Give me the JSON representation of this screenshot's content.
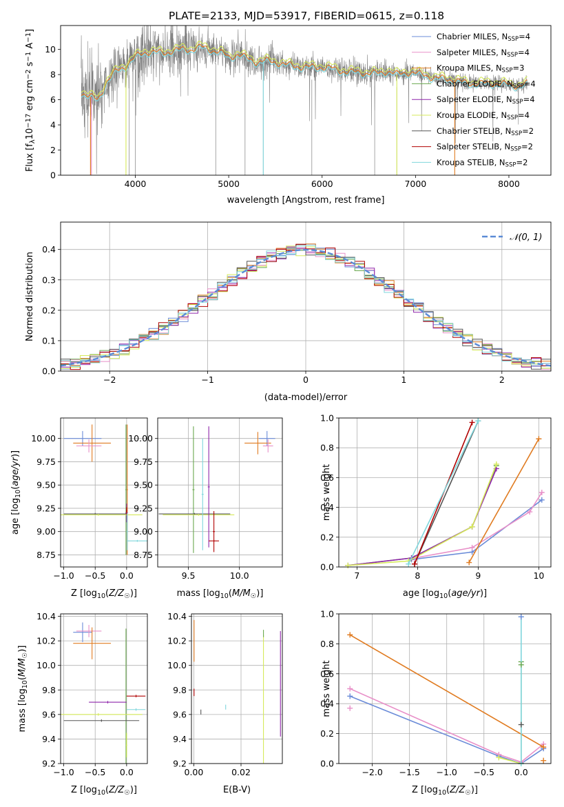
{
  "figure_title": "PLATE=2133, MJD=53917, FIBERID=0615, z=0.118",
  "colors": {
    "chabrier_miles": "#6a8bd8",
    "salpeter_miles": "#e88fc8",
    "kroupa_miles": "#e07b20",
    "chabrier_elodie": "#6aa84f",
    "salpeter_elodie": "#8e24aa",
    "kroupa_elodie": "#d6ea5a",
    "chabrier_stelib": "#555555",
    "salpeter_stelib": "#b00000",
    "kroupa_stelib": "#7ed6dc",
    "data": "#808080",
    "gaussian": "#5b8bd6"
  },
  "chart_data": [
    {
      "id": "spectrum",
      "type": "line",
      "xlabel": "wavelength [Angstrom, rest frame]",
      "ylabel": "Flux [f_λ10^-17 erg cm^-2 s^-1 A^-1]",
      "xlim": [
        3200,
        8450
      ],
      "ylim": [
        0,
        11.9
      ],
      "xticks": [
        4000,
        5000,
        6000,
        7000,
        8000
      ],
      "yticks": [
        0,
        2,
        4,
        6,
        8,
        10
      ],
      "grid": false,
      "legend_position": "right",
      "legend": [
        {
          "label": "Chabrier MILES, N",
          "sub": "SSP",
          "suffix": "=4",
          "color_key": "chabrier_miles"
        },
        {
          "label": "Salpeter MILES, N",
          "sub": "SSP",
          "suffix": "=4",
          "color_key": "salpeter_miles"
        },
        {
          "label": "Kroupa MILES, N",
          "sub": "SSP",
          "suffix": "=3",
          "color_key": "kroupa_miles"
        },
        {
          "label": "Chabrier ELODIE, N",
          "sub": "SSP",
          "suffix": "=4",
          "color_key": "chabrier_elodie"
        },
        {
          "label": "Salpeter ELODIE, N",
          "sub": "SSP",
          "suffix": "=4",
          "color_key": "salpeter_elodie"
        },
        {
          "label": "Kroupa ELODIE, N",
          "sub": "SSP",
          "suffix": "=4",
          "color_key": "kroupa_elodie"
        },
        {
          "label": "Chabrier STELIB, N",
          "sub": "SSP",
          "suffix": "=2",
          "color_key": "chabrier_stelib"
        },
        {
          "label": "Salpeter STELIB, N",
          "sub": "SSP",
          "suffix": "=2",
          "color_key": "salpeter_stelib"
        },
        {
          "label": "Kroupa STELIB, N",
          "sub": "SSP",
          "suffix": "=2",
          "color_key": "kroupa_stelib"
        }
      ],
      "continuum_x": [
        3420,
        3500,
        3600,
        3700,
        3800,
        3900,
        4000,
        4100,
        4200,
        4300,
        4400,
        4500,
        4600,
        4700,
        4800,
        4900,
        5000,
        5100,
        5200,
        5300,
        5400,
        5500,
        5600,
        5700,
        5800,
        5900,
        6000,
        6100,
        6200,
        6300,
        6400,
        6500,
        6600,
        6700,
        6800,
        6900,
        7000,
        7100,
        7200,
        7300,
        7400,
        7500,
        7600,
        7700,
        7800,
        7900,
        8000,
        8100,
        8200
      ],
      "continuum_y": [
        6.6,
        6.3,
        6.0,
        7.5,
        8.3,
        8.7,
        9.4,
        9.8,
        9.8,
        9.7,
        9.9,
        10.0,
        10.0,
        10.2,
        10.0,
        9.8,
        9.4,
        9.6,
        9.3,
        9.0,
        9.1,
        9.0,
        8.8,
        8.7,
        8.6,
        8.6,
        8.6,
        8.5,
        8.3,
        8.2,
        8.2,
        8.1,
        8.1,
        8.3,
        8.0,
        8.2,
        8.1,
        8.0,
        7.7,
        7.7,
        7.6,
        7.4,
        7.3,
        7.3,
        7.3,
        7.3,
        7.2,
        7.1,
        7.3
      ],
      "absorption_lines": [
        3934,
        4000,
        4861,
        5175,
        5370,
        5890,
        6563,
        6800
      ]
    },
    {
      "id": "residuals",
      "type": "histogram",
      "xlabel": "(data-model)/error",
      "ylabel": "Normed distribution",
      "xlim": [
        -2.5,
        2.5
      ],
      "ylim": [
        0,
        0.49
      ],
      "xticks": [
        -2,
        -1,
        0,
        1,
        2
      ],
      "yticks": [
        0.0,
        0.1,
        0.2,
        0.3,
        0.4
      ],
      "grid": true,
      "legend": "𝒩(0, 1)",
      "legend_position": "top-right",
      "bin_width": 0.1
    },
    {
      "id": "age_vs_Z",
      "type": "errorbar",
      "xlabel": "Z [log₁₀(Z/Z☉)]",
      "ylabel": "age  [log₁₀(age/yr)]",
      "xlim": [
        -1.05,
        0.33
      ],
      "ylim": [
        8.62,
        10.22
      ],
      "xticks": [
        -1.0,
        -0.5,
        0.0
      ],
      "yticks": [
        8.75,
        9.0,
        9.25,
        9.5,
        9.75,
        10.0
      ],
      "grid": true,
      "points": [
        {
          "c": "chabrier_miles",
          "x": -0.7,
          "y": 10.0,
          "xe": 0.3,
          "ye": 0.08
        },
        {
          "c": "kroupa_miles",
          "x": -0.55,
          "y": 9.95,
          "xe": 0.3,
          "ye": 0.2
        },
        {
          "c": "salpeter_miles",
          "x": -0.6,
          "y": 9.92,
          "xe": 0.2,
          "ye": 0.07
        },
        {
          "c": "chabrier_elodie",
          "x": -0.01,
          "y": 9.45,
          "xe": 0.01,
          "ye": 0.7
        },
        {
          "c": "kroupa_miles",
          "x": 0.01,
          "y": 9.45,
          "xe": 0.01,
          "ye": 0.7
        },
        {
          "c": "salpeter_elodie",
          "x": 0.0,
          "y": 9.2,
          "xe": 0.02,
          "ye": 0.1
        },
        {
          "c": "chabrier_stelib",
          "x": -0.5,
          "y": 9.19,
          "xe": 0.5,
          "ye": 0.01
        },
        {
          "c": "kroupa_elodie",
          "x": -0.45,
          "y": 9.18,
          "xe": 0.7,
          "ye": 0.01
        },
        {
          "c": "salpeter_stelib",
          "x": 0.0,
          "y": 9.22,
          "xe": 0.01,
          "ye": 0.04
        },
        {
          "c": "kroupa_stelib",
          "x": 0.17,
          "y": 8.9,
          "xe": 0.16,
          "ye": 0.01
        },
        {
          "c": "kroupa_stelib",
          "x": 0.01,
          "y": 9.0,
          "xe": 0.01,
          "ye": 0.2
        }
      ]
    },
    {
      "id": "age_vs_mass",
      "type": "errorbar",
      "xlabel": "mass [log₁₀(M/M☉)]",
      "ylabel": "",
      "xlim": [
        9.2,
        10.42
      ],
      "ylim": [
        8.62,
        10.22
      ],
      "xticks": [
        9.5,
        10.0
      ],
      "yticks": [
        8.75,
        9.0,
        9.25,
        9.5,
        9.75,
        10.0
      ],
      "grid": true,
      "points": [
        {
          "c": "chabrier_miles",
          "x": 10.27,
          "y": 10.0,
          "xe": 0.08,
          "ye": 0.08
        },
        {
          "c": "kroupa_miles",
          "x": 10.18,
          "y": 9.95,
          "xe": 0.13,
          "ye": 0.12
        },
        {
          "c": "salpeter_miles",
          "x": 10.28,
          "y": 9.92,
          "xe": 0.05,
          "ye": 0.07
        },
        {
          "c": "chabrier_elodie",
          "x": 9.55,
          "y": 9.45,
          "xe": 0.01,
          "ye": 0.68
        },
        {
          "c": "chabrier_stelib",
          "x": 9.56,
          "y": 9.19,
          "xe": 0.35,
          "ye": 0.01
        },
        {
          "c": "kroupa_elodie",
          "x": 9.6,
          "y": 9.18,
          "xe": 0.35,
          "ye": 0.01
        },
        {
          "c": "kroupa_stelib",
          "x": 9.64,
          "y": 9.4,
          "xe": 0.01,
          "ye": 0.6
        },
        {
          "c": "salpeter_elodie",
          "x": 9.7,
          "y": 9.48,
          "xe": 0.01,
          "ye": 0.65
        },
        {
          "c": "salpeter_stelib",
          "x": 9.75,
          "y": 9.0,
          "xe": 0.01,
          "ye": 0.22
        },
        {
          "c": "salpeter_stelib",
          "x": 9.75,
          "y": 8.9,
          "xe": 0.05,
          "ye": 0.01
        }
      ]
    },
    {
      "id": "weight_vs_age",
      "type": "line",
      "xlabel": "age  [log₁₀(age/yr)]",
      "ylabel": "mass weight",
      "xlim": [
        6.7,
        10.2
      ],
      "ylim": [
        0,
        1.0
      ],
      "xticks": [
        7,
        8,
        9,
        10
      ],
      "yticks": [
        0.0,
        0.2,
        0.4,
        0.6,
        0.8,
        1.0
      ],
      "grid": true,
      "series": [
        {
          "c": "chabrier_miles",
          "x": [
            7.9,
            8.9,
            10.05
          ],
          "y": [
            0.05,
            0.1,
            0.45
          ]
        },
        {
          "c": "salpeter_miles",
          "x": [
            7.95,
            8.9,
            9.85,
            10.05
          ],
          "y": [
            0.06,
            0.13,
            0.37,
            0.5
          ]
        },
        {
          "c": "kroupa_miles",
          "x": [
            8.85,
            10.0
          ],
          "y": [
            0.03,
            0.86
          ]
        },
        {
          "c": "chabrier_elodie",
          "x": [
            6.85,
            7.9,
            8.9,
            9.3
          ],
          "y": [
            0.01,
            0.06,
            0.27,
            0.68
          ]
        },
        {
          "c": "salpeter_elodie",
          "x": [
            6.85,
            7.9,
            8.9,
            9.3
          ],
          "y": [
            0.01,
            0.06,
            0.27,
            0.66
          ]
        },
        {
          "c": "kroupa_elodie",
          "x": [
            6.85,
            7.85,
            8.9,
            9.3
          ],
          "y": [
            0.01,
            0.04,
            0.27,
            0.69
          ]
        },
        {
          "c": "chabrier_stelib",
          "x": [
            7.95,
            9.0
          ],
          "y": [
            0.02,
            0.98
          ]
        },
        {
          "c": "salpeter_stelib",
          "x": [
            7.95,
            8.9
          ],
          "y": [
            0.02,
            0.97
          ]
        },
        {
          "c": "kroupa_stelib",
          "x": [
            7.85,
            9.0
          ],
          "y": [
            0.02,
            0.98
          ]
        }
      ]
    },
    {
      "id": "mass_vs_Z",
      "type": "errorbar",
      "xlabel": "Z [log₁₀(Z/Z☉)]",
      "ylabel": "mass [log₁₀(M/M☉)]",
      "xlim": [
        -1.05,
        0.33
      ],
      "ylim": [
        9.2,
        10.42
      ],
      "xticks": [
        -1.0,
        -0.5,
        0.0
      ],
      "yticks": [
        9.2,
        9.4,
        9.6,
        9.8,
        10.0,
        10.2,
        10.4
      ],
      "grid": true,
      "points": [
        {
          "c": "chabrier_miles",
          "x": -0.7,
          "y": 10.27,
          "xe": 0.15,
          "ye": 0.08
        },
        {
          "c": "salpeter_miles",
          "x": -0.6,
          "y": 10.28,
          "xe": 0.2,
          "ye": 0.05
        },
        {
          "c": "kroupa_miles",
          "x": -0.55,
          "y": 10.18,
          "xe": 0.3,
          "ye": 0.13
        },
        {
          "c": "chabrier_elodie",
          "x": -0.01,
          "y": 9.7,
          "xe": 0.01,
          "ye": 0.6
        },
        {
          "c": "salpeter_elodie",
          "x": -0.3,
          "y": 9.7,
          "xe": 0.3,
          "ye": 0.01
        },
        {
          "c": "salpeter_stelib",
          "x": 0.15,
          "y": 9.75,
          "xe": 0.15,
          "ye": 0.01
        },
        {
          "c": "kroupa_stelib",
          "x": 0.15,
          "y": 9.64,
          "xe": 0.15,
          "ye": 0.01
        },
        {
          "c": "kroupa_elodie",
          "x": -0.45,
          "y": 9.6,
          "xe": 0.7,
          "ye": 0.01
        },
        {
          "c": "chabrier_stelib",
          "x": -0.4,
          "y": 9.55,
          "xe": 0.6,
          "ye": 0.01
        },
        {
          "c": "kroupa_elodie",
          "x": 0.0,
          "y": 9.35,
          "xe": 0.01,
          "ye": 0.1
        }
      ]
    },
    {
      "id": "mass_vs_ebv",
      "type": "errorbar",
      "xlabel": "E(B-V)",
      "ylabel": "",
      "xlim": [
        -0.001,
        0.0375
      ],
      "ylim": [
        9.2,
        10.42
      ],
      "xticks": [
        0.0,
        0.02
      ],
      "yticks": [
        9.2,
        9.4,
        9.6,
        9.8,
        10.0,
        10.2,
        10.4
      ],
      "grid": true,
      "points": [
        {
          "c": "kroupa_miles",
          "x": 0.0001,
          "y": 10.2,
          "xe": 0.0,
          "ye": 0.17
        },
        {
          "c": "salpeter_stelib",
          "x": 0.0001,
          "y": 9.78,
          "xe": 0.0,
          "ye": 0.03
        },
        {
          "c": "chabrier_stelib",
          "x": 0.003,
          "y": 9.62,
          "xe": 0.0,
          "ye": 0.02
        },
        {
          "c": "kroupa_stelib",
          "x": 0.0135,
          "y": 9.66,
          "xe": 0.0,
          "ye": 0.02
        },
        {
          "c": "kroupa_elodie",
          "x": 0.0295,
          "y": 9.7,
          "xe": 0.0,
          "ye": 0.55
        },
        {
          "c": "chabrier_elodie",
          "x": 0.0295,
          "y": 10.26,
          "xe": 0.0,
          "ye": 0.03
        },
        {
          "c": "salpeter_elodie",
          "x": 0.0367,
          "y": 9.85,
          "xe": 0.0,
          "ye": 0.43
        }
      ]
    },
    {
      "id": "weight_vs_Z",
      "type": "line",
      "xlabel": "Z [log₁₀(Z/Z☉)]",
      "ylabel": "mass weight",
      "xlim": [
        -2.45,
        0.4
      ],
      "ylim": [
        0,
        1.0
      ],
      "xticks": [
        -2.0,
        -1.5,
        -1.0,
        -0.5,
        0.0
      ],
      "yticks": [
        0.0,
        0.2,
        0.4,
        0.6,
        0.8,
        1.0
      ],
      "grid": true,
      "series": [
        {
          "c": "chabrier_miles",
          "x": [
            -2.3,
            -0.3,
            0.0,
            0.3
          ],
          "y": [
            0.45,
            0.05,
            0.0,
            0.1
          ]
        },
        {
          "c": "salpeter_miles",
          "x": [
            -2.3,
            -0.3,
            0.0,
            0.3
          ],
          "y": [
            0.5,
            0.06,
            0.01,
            0.13
          ]
        },
        {
          "c": "kroupa_miles",
          "x": [
            -2.3,
            0.3
          ],
          "y": [
            0.86,
            0.11
          ]
        },
        {
          "c": "kroupa_elodie",
          "x": [
            -0.3,
            0.0
          ],
          "y": [
            0.04,
            0.0
          ]
        },
        {
          "c": "chabrier_elodie",
          "x": [
            0.0,
            0.0
          ],
          "y": [
            0.0,
            0.68
          ]
        },
        {
          "c": "kroupa_stelib",
          "x": [
            0.0,
            0.0
          ],
          "y": [
            0.0,
            0.98
          ]
        }
      ],
      "extra_markers": [
        {
          "c": "kroupa_miles",
          "x": 0.3,
          "y": 0.02
        },
        {
          "c": "salpeter_miles",
          "x": -2.3,
          "y": 0.37
        },
        {
          "c": "chabrier_stelib",
          "x": 0.0,
          "y": 0.26
        },
        {
          "c": "chabrier_elodie",
          "x": 0.0,
          "y": 0.66
        },
        {
          "c": "chabrier_miles",
          "x": 0.0,
          "y": 0.98
        }
      ]
    }
  ]
}
